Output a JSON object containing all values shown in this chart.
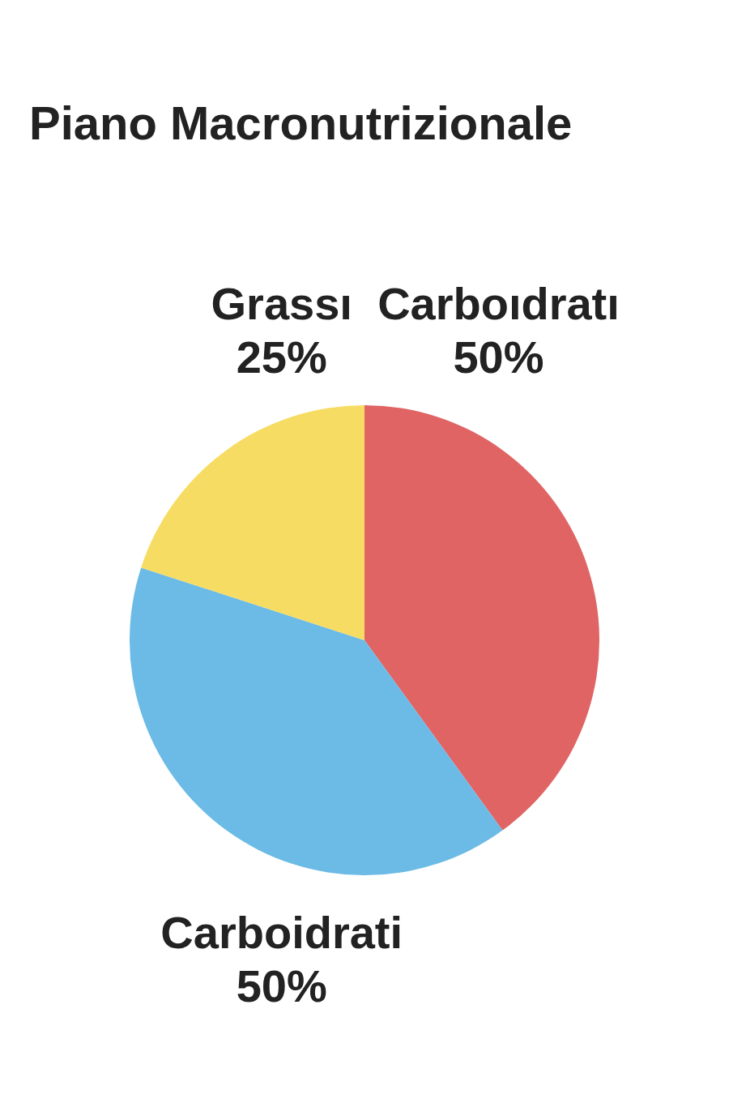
{
  "chart_data": {
    "type": "pie",
    "title": "Piano Macronutrizionale",
    "categories": [
      "Carboıdratı",
      "Carboidrati",
      "Grassı"
    ],
    "values": [
      50,
      50,
      25
    ],
    "colors": [
      "#e06464",
      "#6bbbe6",
      "#f7dc63"
    ],
    "value_labels": [
      "50%",
      "50%",
      "25%"
    ]
  }
}
